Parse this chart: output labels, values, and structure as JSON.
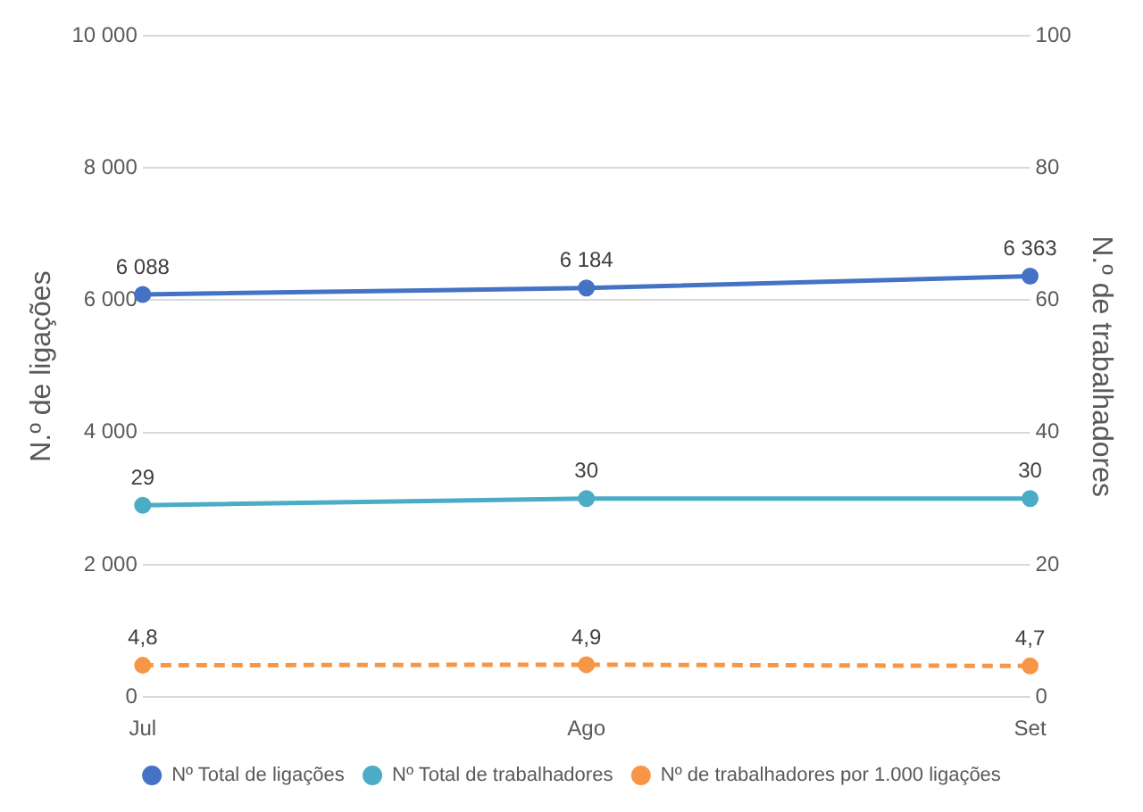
{
  "chart_data": {
    "type": "line",
    "categories": [
      "Jul",
      "Ago",
      "Set"
    ],
    "ylabel": "N.º de ligações",
    "y2label": "N.º de trabalhadores",
    "ylim": [
      0,
      10000
    ],
    "yticks": [
      0,
      {
        "value": 2000,
        "label": "2 000"
      },
      {
        "value": 4000,
        "label": "4 000"
      },
      {
        "value": 6000,
        "label": "6 000"
      },
      {
        "value": 8000,
        "label": "8 000"
      },
      {
        "value": 10000,
        "label": "10 000"
      }
    ],
    "y2lim": [
      0,
      100
    ],
    "y2ticks": [
      0,
      20,
      40,
      60,
      80,
      100
    ],
    "grid": "y",
    "legend": "bottom",
    "marker": "circle",
    "series": [
      {
        "name": "Nº Total de ligações",
        "color": "#4472c4",
        "values": [
          6088,
          6184,
          6363
        ],
        "value_labels": [
          "6 088",
          "6 184",
          "6 363"
        ]
      },
      {
        "name": "Nº Total de trabalhadores",
        "color": "#4bacc6",
        "axis": "y2",
        "values": [
          29,
          30,
          30
        ],
        "value_labels": [
          "29",
          "30",
          "30"
        ]
      },
      {
        "name": "Nº de trabalhadores por 1.000 ligações",
        "color": "#f79646",
        "axis": "y2",
        "line_style": "dashed",
        "values": [
          4.8,
          4.9,
          4.7
        ],
        "value_labels": [
          "4,8",
          "4,9",
          "4,7"
        ]
      }
    ]
  }
}
